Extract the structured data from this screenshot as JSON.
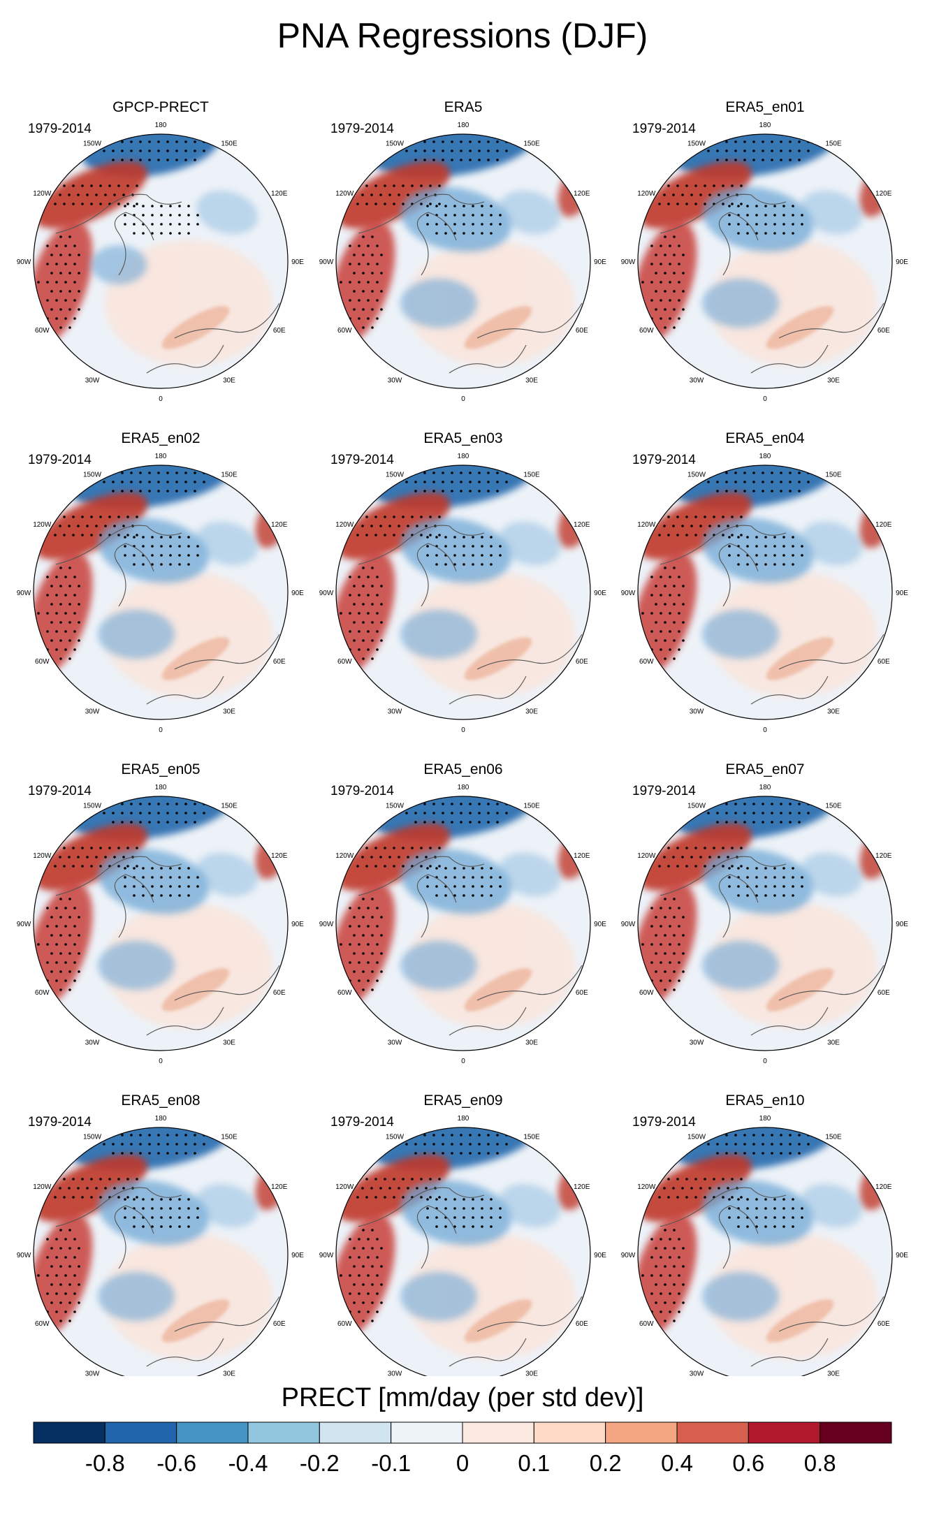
{
  "figure_title": "PNA Regressions (DJF)",
  "chart_data": {
    "type": "polar-contour-map-panels",
    "title": "PNA Regressions (DJF)",
    "variable": "PRECT",
    "period_label": "1979-2014",
    "projection": "north polar stereographic",
    "longitude_labels": [
      "180",
      "150E",
      "120E",
      "90E",
      "60E",
      "30E",
      "0",
      "30W",
      "60W",
      "90W",
      "120W",
      "150W"
    ],
    "panels": [
      {
        "title": "GPCP-PRECT",
        "period": "1979-2014"
      },
      {
        "title": "ERA5",
        "period": "1979-2014"
      },
      {
        "title": "ERA5_en01",
        "period": "1979-2014"
      },
      {
        "title": "ERA5_en02",
        "period": "1979-2014"
      },
      {
        "title": "ERA5_en03",
        "period": "1979-2014"
      },
      {
        "title": "ERA5_en04",
        "period": "1979-2014"
      },
      {
        "title": "ERA5_en05",
        "period": "1979-2014"
      },
      {
        "title": "ERA5_en06",
        "period": "1979-2014"
      },
      {
        "title": "ERA5_en07",
        "period": "1979-2014"
      },
      {
        "title": "ERA5_en08",
        "period": "1979-2014"
      },
      {
        "title": "ERA5_en09",
        "period": "1979-2014"
      },
      {
        "title": "ERA5_en10",
        "period": "1979-2014"
      }
    ],
    "colorbar": {
      "title": "PRECT [mm/day (per std dev)]",
      "boundaries": [
        "-0.8",
        "-0.6",
        "-0.4",
        "-0.2",
        "-0.1",
        "0",
        "0.1",
        "0.2",
        "0.4",
        "0.6",
        "0.8"
      ],
      "colors": [
        "#053061",
        "#2166ac",
        "#4393c3",
        "#92c5de",
        "#d1e5f0",
        "#eef3f8",
        "#fbe8e0",
        "#fddbc7",
        "#f4a582",
        "#d6604d",
        "#b2182b",
        "#67001f"
      ]
    },
    "patterns": {
      "north_pacific_low": "#2e6fb0",
      "north_pacific_high": "#c0392b",
      "west_atlantic_high": "#c8403a",
      "labrador_low": "#6fa8d6",
      "siberia_low": "#7fb3dc"
    }
  }
}
